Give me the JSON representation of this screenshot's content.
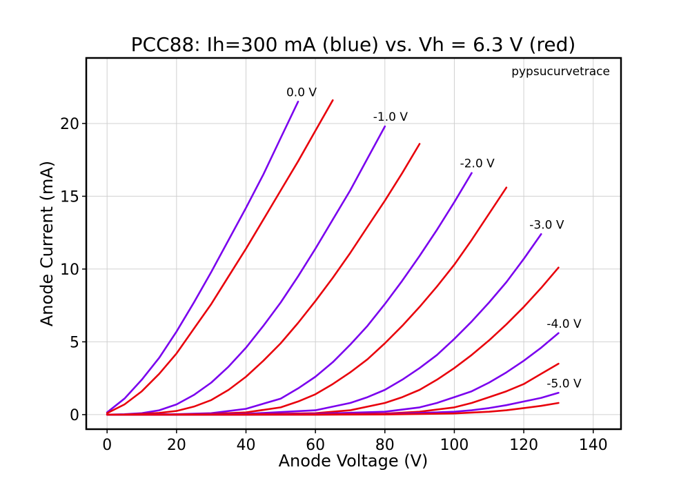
{
  "chart_data": {
    "type": "line",
    "title": "PCC88: Ih=300 mA (blue) vs. Vh = 6.3 V (red)",
    "xlabel": "Anode Voltage (V)",
    "ylabel": "Anode Current (mA)",
    "annotation": "pypsucurvetrace",
    "xlim": [
      -6,
      148
    ],
    "ylim": [
      -1,
      24.5
    ],
    "xticks": [
      0,
      20,
      40,
      60,
      80,
      100,
      120,
      140
    ],
    "yticks": [
      0,
      5,
      10,
      15,
      20
    ],
    "grid": true,
    "colors": {
      "blue": "#7a00ee",
      "red": "#e8000b"
    },
    "series": [
      {
        "grid_label": "0.0 V",
        "color": "blue",
        "x": [
          0,
          5,
          10,
          15,
          20,
          25,
          30,
          35,
          40,
          45,
          50,
          55
        ],
        "y": [
          0.15,
          1.1,
          2.4,
          3.9,
          5.7,
          7.7,
          9.8,
          12.0,
          14.2,
          16.5,
          19.0,
          21.5
        ]
      },
      {
        "color": "red",
        "x": [
          0,
          5,
          10,
          15,
          20,
          25,
          30,
          35,
          40,
          45,
          50,
          55,
          60,
          65
        ],
        "y": [
          0.1,
          0.7,
          1.6,
          2.8,
          4.2,
          5.9,
          7.6,
          9.5,
          11.4,
          13.4,
          15.4,
          17.4,
          19.5,
          21.6
        ]
      },
      {
        "grid_label": "-1.0 V",
        "color": "blue",
        "x": [
          0,
          5,
          10,
          15,
          20,
          25,
          30,
          35,
          40,
          45,
          50,
          55,
          60,
          65,
          70,
          75,
          80
        ],
        "y": [
          0,
          0.03,
          0.1,
          0.3,
          0.7,
          1.35,
          2.2,
          3.3,
          4.6,
          6.1,
          7.7,
          9.5,
          11.4,
          13.4,
          15.4,
          17.6,
          19.8
        ]
      },
      {
        "color": "red",
        "x": [
          0,
          5,
          10,
          15,
          20,
          25,
          30,
          35,
          40,
          45,
          50,
          55,
          60,
          65,
          70,
          75,
          80,
          85,
          90
        ],
        "y": [
          0,
          0.01,
          0.05,
          0.12,
          0.25,
          0.55,
          1.0,
          1.7,
          2.6,
          3.7,
          4.9,
          6.3,
          7.8,
          9.4,
          11.1,
          12.9,
          14.7,
          16.6,
          18.6
        ]
      },
      {
        "grid_label": "-2.0 V",
        "color": "blue",
        "x": [
          0,
          10,
          20,
          30,
          40,
          50,
          55,
          60,
          65,
          70,
          75,
          80,
          85,
          90,
          95,
          100,
          105
        ],
        "y": [
          0,
          0.01,
          0.03,
          0.1,
          0.4,
          1.1,
          1.8,
          2.6,
          3.6,
          4.8,
          6.1,
          7.6,
          9.2,
          10.9,
          12.7,
          14.6,
          16.6
        ]
      },
      {
        "color": "red",
        "x": [
          0,
          10,
          20,
          30,
          40,
          50,
          55,
          60,
          65,
          70,
          75,
          80,
          85,
          90,
          95,
          100,
          105,
          110,
          115
        ],
        "y": [
          0,
          0,
          0.01,
          0.05,
          0.15,
          0.5,
          0.9,
          1.4,
          2.1,
          2.9,
          3.8,
          4.9,
          6.1,
          7.4,
          8.8,
          10.3,
          12.0,
          13.8,
          15.6
        ]
      },
      {
        "grid_label": "-3.0 V",
        "color": "blue",
        "x": [
          0,
          20,
          40,
          60,
          70,
          75,
          80,
          85,
          90,
          95,
          100,
          105,
          110,
          115,
          120,
          125
        ],
        "y": [
          0,
          0,
          0.05,
          0.3,
          0.8,
          1.2,
          1.7,
          2.4,
          3.2,
          4.1,
          5.2,
          6.4,
          7.7,
          9.1,
          10.7,
          12.4
        ]
      },
      {
        "color": "red",
        "x": [
          0,
          20,
          40,
          60,
          70,
          80,
          85,
          90,
          95,
          100,
          105,
          110,
          115,
          120,
          125,
          130
        ],
        "y": [
          0,
          0,
          0.02,
          0.1,
          0.3,
          0.8,
          1.2,
          1.7,
          2.4,
          3.2,
          4.1,
          5.1,
          6.2,
          7.4,
          8.7,
          10.1
        ]
      },
      {
        "grid_label": "-4.0 V",
        "color": "blue",
        "x": [
          0,
          20,
          40,
          60,
          80,
          90,
          95,
          100,
          105,
          110,
          115,
          120,
          125,
          130
        ],
        "y": [
          0,
          0,
          0,
          0.05,
          0.2,
          0.5,
          0.8,
          1.2,
          1.6,
          2.2,
          2.9,
          3.7,
          4.6,
          5.6
        ]
      },
      {
        "color": "red",
        "x": [
          0,
          20,
          40,
          60,
          80,
          90,
          100,
          105,
          110,
          115,
          120,
          125,
          130
        ],
        "y": [
          0,
          0,
          0,
          0.02,
          0.07,
          0.2,
          0.5,
          0.8,
          1.2,
          1.6,
          2.1,
          2.8,
          3.5
        ]
      },
      {
        "grid_label": "-5.0 V",
        "color": "blue",
        "x": [
          0,
          20,
          40,
          60,
          80,
          100,
          105,
          110,
          115,
          120,
          125,
          130
        ],
        "y": [
          0,
          0,
          0,
          0,
          0.03,
          0.2,
          0.3,
          0.45,
          0.65,
          0.9,
          1.15,
          1.5
        ]
      },
      {
        "color": "red",
        "x": [
          0,
          20,
          40,
          60,
          80,
          100,
          110,
          115,
          120,
          125,
          130
        ],
        "y": [
          0,
          0,
          0,
          0,
          0.01,
          0.08,
          0.2,
          0.3,
          0.45,
          0.6,
          0.8
        ]
      }
    ]
  }
}
